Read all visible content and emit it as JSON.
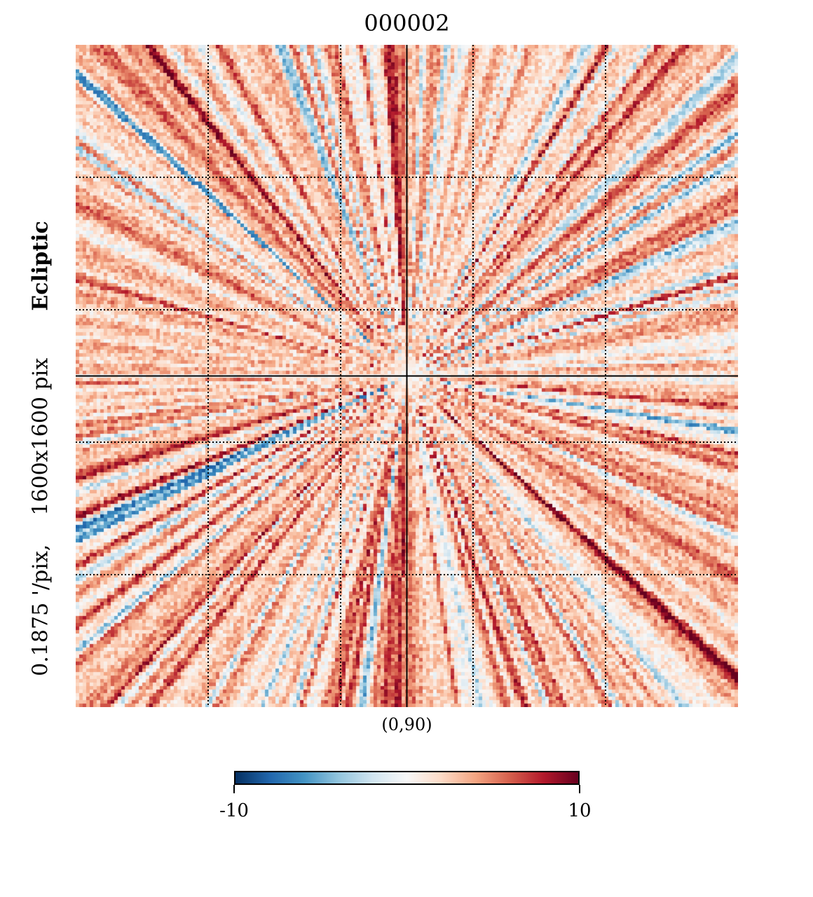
{
  "chart_data": {
    "type": "heatmap",
    "title": "000002",
    "projection": "gnomonic",
    "center_label": "(0,90)",
    "coord_system": "Ecliptic",
    "resolution_text": "0.1875 '/pix,",
    "size_text": "1600x1600 pix",
    "colormap": "RdBu_r",
    "colorbar": {
      "min": -10,
      "max": 10,
      "min_label": "-10",
      "max_label": "10",
      "colors": [
        "#053061",
        "#2166ac",
        "#4393c3",
        "#92c5de",
        "#d1e5f0",
        "#f7f7f7",
        "#fddbc7",
        "#f4a582",
        "#d6604d",
        "#b2182b",
        "#67001f"
      ]
    },
    "graticule": {
      "style": "dotted",
      "divisions": 5
    },
    "pattern": "radial streaks converging at center",
    "value_range": [
      -10,
      10
    ]
  }
}
